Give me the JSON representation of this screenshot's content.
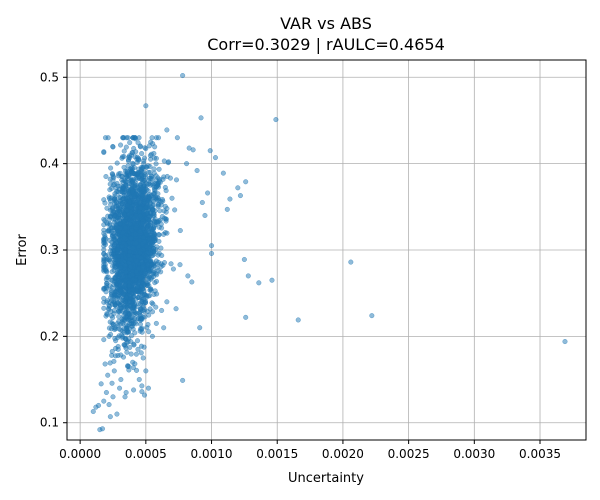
{
  "chart_data": {
    "type": "scatter",
    "title": "VAR vs ABS",
    "subtitle": "Corr=0.3029 | rAULC=0.4654",
    "xlabel": "Uncertainty",
    "ylabel": "Error",
    "xlim": [
      -0.0001,
      0.00385
    ],
    "ylim": [
      0.08,
      0.52
    ],
    "xticks": [
      0.0,
      0.0005,
      0.001,
      0.0015,
      0.002,
      0.0025,
      0.003,
      0.0035
    ],
    "xtick_labels": [
      "0.0000",
      "0.0005",
      "0.0010",
      "0.0015",
      "0.0020",
      "0.0025",
      "0.0030",
      "0.0035"
    ],
    "yticks": [
      0.1,
      0.2,
      0.3,
      0.4,
      0.5
    ],
    "ytick_labels": [
      "0.1",
      "0.2",
      "0.3",
      "0.4",
      "0.5"
    ],
    "grid": true,
    "marker_color": "#1f77b4",
    "points": [
      [
        0.00078,
        0.502
      ],
      [
        0.00149,
        0.451
      ],
      [
        0.00092,
        0.453
      ],
      [
        0.0005,
        0.467
      ],
      [
        0.00083,
        0.418
      ],
      [
        0.00086,
        0.416
      ],
      [
        0.00099,
        0.415
      ],
      [
        0.00103,
        0.407
      ],
      [
        0.00109,
        0.389
      ],
      [
        0.0012,
        0.372
      ],
      [
        0.00126,
        0.379
      ],
      [
        0.00122,
        0.363
      ],
      [
        0.00114,
        0.359
      ],
      [
        0.00112,
        0.347
      ],
      [
        0.001,
        0.305
      ],
      [
        0.001,
        0.296
      ],
      [
        0.00125,
        0.289
      ],
      [
        0.00128,
        0.27
      ],
      [
        0.00136,
        0.262
      ],
      [
        0.00146,
        0.265
      ],
      [
        0.00126,
        0.222
      ],
      [
        0.00166,
        0.219
      ],
      [
        0.00206,
        0.286
      ],
      [
        0.00222,
        0.224
      ],
      [
        0.00369,
        0.194
      ],
      [
        0.00091,
        0.21
      ],
      [
        0.00073,
        0.232
      ],
      [
        0.00078,
        0.149
      ],
      [
        0.00071,
        0.278
      ],
      [
        0.00076,
        0.283
      ],
      [
        0.00082,
        0.27
      ],
      [
        0.00085,
        0.263
      ],
      [
        0.00093,
        0.355
      ],
      [
        0.00097,
        0.366
      ],
      [
        0.00095,
        0.34
      ],
      [
        0.00089,
        0.392
      ],
      [
        0.00081,
        0.4
      ],
      [
        0.00074,
        0.43
      ],
      [
        0.00066,
        0.439
      ],
      [
        0.00058,
        0.43
      ],
      [
        0.00015,
        0.092
      ],
      [
        0.00017,
        0.093
      ],
      [
        0.00023,
        0.107
      ],
      [
        0.0001,
        0.113
      ],
      [
        0.00012,
        0.118
      ],
      [
        0.00014,
        0.12
      ],
      [
        0.00018,
        0.125
      ],
      [
        0.00022,
        0.121
      ],
      [
        0.0002,
        0.135
      ],
      [
        0.00016,
        0.145
      ],
      [
        0.00025,
        0.13
      ],
      [
        0.00028,
        0.11
      ],
      [
        0.0003,
        0.14
      ],
      [
        0.00021,
        0.155
      ],
      [
        0.00026,
        0.16
      ],
      [
        0.00031,
        0.15
      ],
      [
        0.00035,
        0.135
      ],
      [
        0.00019,
        0.168
      ],
      [
        0.00024,
        0.178
      ],
      [
        0.00029,
        0.185
      ],
      [
        0.00047,
        0.136
      ],
      [
        0.00049,
        0.132
      ],
      [
        0.00052,
        0.14
      ],
      [
        0.00045,
        0.15
      ],
      [
        0.00027,
        0.195
      ],
      [
        0.00033,
        0.176
      ],
      [
        0.00037,
        0.165
      ],
      [
        0.0004,
        0.17
      ],
      [
        0.00022,
        0.2
      ],
      [
        0.00026,
        0.21
      ],
      [
        0.00032,
        0.22
      ],
      [
        0.00036,
        0.205
      ],
      [
        0.00041,
        0.19
      ],
      [
        0.00044,
        0.185
      ],
      [
        0.00048,
        0.175
      ],
      [
        0.0005,
        0.16
      ],
      [
        0.00055,
        0.2
      ],
      [
        0.00058,
        0.215
      ],
      [
        0.00062,
        0.23
      ],
      [
        0.00066,
        0.24
      ]
    ],
    "cluster": {
      "x_mean": 0.00043,
      "x_sd": 0.00011,
      "y_mean": 0.305,
      "y_sd": 0.048,
      "count": 2600
    }
  }
}
